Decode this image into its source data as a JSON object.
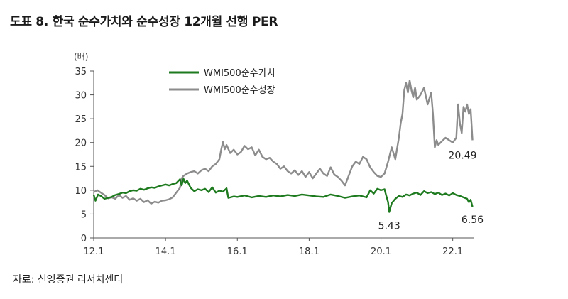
{
  "header": {
    "title": "도표 8. 한국 순수가치와 순수성장 12개월 선행 PER"
  },
  "footer": {
    "source": "자료: 신영증권 리서치센터"
  },
  "chart_data": {
    "type": "line",
    "title": "도표 8. 한국 순수가치와 순수성장 12개월 선행 PER",
    "unit_label": "(배)",
    "xlabel": "",
    "ylabel": "",
    "ylim": [
      0,
      35
    ],
    "xlim": [
      2012.0,
      2022.6
    ],
    "yticks": [
      0,
      5,
      10,
      15,
      20,
      25,
      30,
      35
    ],
    "xticks": [
      {
        "value": 2012.0,
        "label": "12.1"
      },
      {
        "value": 2014.0,
        "label": "14.1"
      },
      {
        "value": 2016.0,
        "label": "16.1"
      },
      {
        "value": 2018.0,
        "label": "18.1"
      },
      {
        "value": 2020.0,
        "label": "20.1"
      },
      {
        "value": 2022.0,
        "label": "22.1"
      }
    ],
    "grid": false,
    "legend": "top-left",
    "series": [
      {
        "name": "WMI500순수가치",
        "color": "#1e7a1e",
        "points": [
          [
            2012.0,
            9.0
          ],
          [
            2012.05,
            7.8
          ],
          [
            2012.12,
            9.1
          ],
          [
            2012.2,
            8.8
          ],
          [
            2012.3,
            8.2
          ],
          [
            2012.4,
            8.4
          ],
          [
            2012.5,
            8.6
          ],
          [
            2012.6,
            9.0
          ],
          [
            2012.7,
            9.2
          ],
          [
            2012.8,
            9.5
          ],
          [
            2012.9,
            9.4
          ],
          [
            2013.0,
            9.8
          ],
          [
            2013.1,
            10.0
          ],
          [
            2013.2,
            9.9
          ],
          [
            2013.3,
            10.3
          ],
          [
            2013.4,
            10.1
          ],
          [
            2013.5,
            10.4
          ],
          [
            2013.6,
            10.6
          ],
          [
            2013.7,
            10.5
          ],
          [
            2013.8,
            10.8
          ],
          [
            2013.9,
            11.0
          ],
          [
            2014.0,
            11.2
          ],
          [
            2014.1,
            11.0
          ],
          [
            2014.2,
            11.3
          ],
          [
            2014.3,
            11.5
          ],
          [
            2014.4,
            12.3
          ],
          [
            2014.45,
            11.0
          ],
          [
            2014.5,
            12.4
          ],
          [
            2014.55,
            11.5
          ],
          [
            2014.6,
            12.0
          ],
          [
            2014.7,
            10.5
          ],
          [
            2014.8,
            9.8
          ],
          [
            2014.9,
            10.2
          ],
          [
            2015.0,
            10.0
          ],
          [
            2015.1,
            10.3
          ],
          [
            2015.2,
            9.6
          ],
          [
            2015.3,
            10.6
          ],
          [
            2015.4,
            9.5
          ],
          [
            2015.5,
            9.9
          ],
          [
            2015.6,
            9.7
          ],
          [
            2015.7,
            10.4
          ],
          [
            2015.75,
            8.4
          ],
          [
            2015.9,
            8.7
          ],
          [
            2016.0,
            8.6
          ],
          [
            2016.2,
            8.9
          ],
          [
            2016.4,
            8.5
          ],
          [
            2016.6,
            8.8
          ],
          [
            2016.8,
            8.6
          ],
          [
            2017.0,
            8.9
          ],
          [
            2017.2,
            8.7
          ],
          [
            2017.4,
            9.0
          ],
          [
            2017.6,
            8.8
          ],
          [
            2017.8,
            9.1
          ],
          [
            2018.0,
            8.9
          ],
          [
            2018.2,
            8.7
          ],
          [
            2018.4,
            8.6
          ],
          [
            2018.6,
            9.1
          ],
          [
            2018.8,
            8.8
          ],
          [
            2019.0,
            8.4
          ],
          [
            2019.2,
            8.7
          ],
          [
            2019.4,
            8.9
          ],
          [
            2019.6,
            8.5
          ],
          [
            2019.7,
            10.0
          ],
          [
            2019.8,
            9.3
          ],
          [
            2019.9,
            10.3
          ],
          [
            2020.0,
            10.0
          ],
          [
            2020.1,
            10.2
          ],
          [
            2020.15,
            8.8
          ],
          [
            2020.2,
            7.5
          ],
          [
            2020.23,
            5.43
          ],
          [
            2020.3,
            7.3
          ],
          [
            2020.4,
            8.2
          ],
          [
            2020.5,
            8.8
          ],
          [
            2020.6,
            8.6
          ],
          [
            2020.7,
            9.1
          ],
          [
            2020.8,
            8.9
          ],
          [
            2020.9,
            9.3
          ],
          [
            2021.0,
            9.5
          ],
          [
            2021.1,
            9.0
          ],
          [
            2021.2,
            9.8
          ],
          [
            2021.3,
            9.4
          ],
          [
            2021.4,
            9.6
          ],
          [
            2021.5,
            9.2
          ],
          [
            2021.6,
            9.5
          ],
          [
            2021.7,
            9.0
          ],
          [
            2021.8,
            9.3
          ],
          [
            2021.9,
            8.9
          ],
          [
            2022.0,
            9.4
          ],
          [
            2022.1,
            9.0
          ],
          [
            2022.2,
            8.8
          ],
          [
            2022.3,
            8.5
          ],
          [
            2022.4,
            8.2
          ],
          [
            2022.45,
            7.5
          ],
          [
            2022.5,
            8.0
          ],
          [
            2022.55,
            6.56
          ]
        ]
      },
      {
        "name": "WMI500순수성장",
        "color": "#8c8c8c",
        "points": [
          [
            2012.0,
            9.6
          ],
          [
            2012.1,
            10.0
          ],
          [
            2012.2,
            9.5
          ],
          [
            2012.3,
            9.0
          ],
          [
            2012.4,
            8.3
          ],
          [
            2012.5,
            8.5
          ],
          [
            2012.6,
            8.2
          ],
          [
            2012.7,
            9.0
          ],
          [
            2012.8,
            8.4
          ],
          [
            2012.9,
            8.8
          ],
          [
            2013.0,
            8.0
          ],
          [
            2013.1,
            8.3
          ],
          [
            2013.2,
            7.8
          ],
          [
            2013.3,
            8.2
          ],
          [
            2013.4,
            7.5
          ],
          [
            2013.5,
            7.9
          ],
          [
            2013.6,
            7.2
          ],
          [
            2013.7,
            7.6
          ],
          [
            2013.8,
            7.4
          ],
          [
            2013.9,
            7.8
          ],
          [
            2014.0,
            7.9
          ],
          [
            2014.1,
            8.1
          ],
          [
            2014.2,
            8.5
          ],
          [
            2014.3,
            9.5
          ],
          [
            2014.4,
            10.5
          ],
          [
            2014.45,
            12.5
          ],
          [
            2014.5,
            13.0
          ],
          [
            2014.6,
            13.5
          ],
          [
            2014.7,
            13.8
          ],
          [
            2014.8,
            14.0
          ],
          [
            2014.9,
            13.5
          ],
          [
            2015.0,
            14.2
          ],
          [
            2015.1,
            14.5
          ],
          [
            2015.2,
            14.0
          ],
          [
            2015.3,
            15.0
          ],
          [
            2015.4,
            15.5
          ],
          [
            2015.5,
            16.5
          ],
          [
            2015.55,
            18.5
          ],
          [
            2015.6,
            20.1
          ],
          [
            2015.65,
            18.6
          ],
          [
            2015.7,
            19.5
          ],
          [
            2015.8,
            17.8
          ],
          [
            2015.9,
            18.5
          ],
          [
            2016.0,
            17.5
          ],
          [
            2016.1,
            18.0
          ],
          [
            2016.2,
            19.3
          ],
          [
            2016.3,
            18.6
          ],
          [
            2016.4,
            19.0
          ],
          [
            2016.5,
            17.3
          ],
          [
            2016.6,
            18.5
          ],
          [
            2016.7,
            17.0
          ],
          [
            2016.8,
            16.5
          ],
          [
            2016.9,
            16.8
          ],
          [
            2017.0,
            16.0
          ],
          [
            2017.1,
            15.5
          ],
          [
            2017.2,
            14.5
          ],
          [
            2017.3,
            15.0
          ],
          [
            2017.4,
            14.0
          ],
          [
            2017.5,
            13.5
          ],
          [
            2017.6,
            14.2
          ],
          [
            2017.7,
            13.2
          ],
          [
            2017.8,
            14.0
          ],
          [
            2017.9,
            12.8
          ],
          [
            2018.0,
            13.8
          ],
          [
            2018.1,
            12.5
          ],
          [
            2018.2,
            13.5
          ],
          [
            2018.3,
            14.5
          ],
          [
            2018.4,
            13.5
          ],
          [
            2018.5,
            13.0
          ],
          [
            2018.6,
            14.8
          ],
          [
            2018.7,
            13.3
          ],
          [
            2018.8,
            12.8
          ],
          [
            2018.9,
            12.0
          ],
          [
            2019.0,
            11.0
          ],
          [
            2019.1,
            13.0
          ],
          [
            2019.2,
            15.0
          ],
          [
            2019.3,
            16.0
          ],
          [
            2019.4,
            15.5
          ],
          [
            2019.5,
            17.0
          ],
          [
            2019.6,
            16.5
          ],
          [
            2019.7,
            14.8
          ],
          [
            2019.8,
            13.8
          ],
          [
            2019.9,
            13.0
          ],
          [
            2020.0,
            12.8
          ],
          [
            2020.1,
            13.5
          ],
          [
            2020.2,
            16.0
          ],
          [
            2020.3,
            19.0
          ],
          [
            2020.4,
            16.5
          ],
          [
            2020.5,
            21.0
          ],
          [
            2020.55,
            24.0
          ],
          [
            2020.6,
            26.0
          ],
          [
            2020.65,
            31.0
          ],
          [
            2020.7,
            32.5
          ],
          [
            2020.75,
            30.5
          ],
          [
            2020.8,
            33.0
          ],
          [
            2020.85,
            31.0
          ],
          [
            2020.9,
            29.5
          ],
          [
            2020.95,
            31.5
          ],
          [
            2021.0,
            29.0
          ],
          [
            2021.1,
            30.0
          ],
          [
            2021.2,
            31.5
          ],
          [
            2021.3,
            28.0
          ],
          [
            2021.4,
            30.5
          ],
          [
            2021.45,
            26.0
          ],
          [
            2021.5,
            19.0
          ],
          [
            2021.55,
            20.5
          ],
          [
            2021.6,
            19.5
          ],
          [
            2021.7,
            20.3
          ],
          [
            2021.8,
            21.0
          ],
          [
            2021.9,
            20.5
          ],
          [
            2022.0,
            20.0
          ],
          [
            2022.1,
            21.0
          ],
          [
            2022.15,
            28.0
          ],
          [
            2022.2,
            24.0
          ],
          [
            2022.25,
            22.0
          ],
          [
            2022.3,
            27.5
          ],
          [
            2022.35,
            26.5
          ],
          [
            2022.4,
            28.0
          ],
          [
            2022.45,
            26.0
          ],
          [
            2022.5,
            27.0
          ],
          [
            2022.55,
            20.49
          ]
        ]
      }
    ],
    "annotations": [
      {
        "text": "5.43",
        "x": 2020.23,
        "y": 5.43
      },
      {
        "text": "6.56",
        "x": 2022.55,
        "y": 6.56
      },
      {
        "text": "20.49",
        "x": 2022.55,
        "y": 20.49
      }
    ]
  }
}
